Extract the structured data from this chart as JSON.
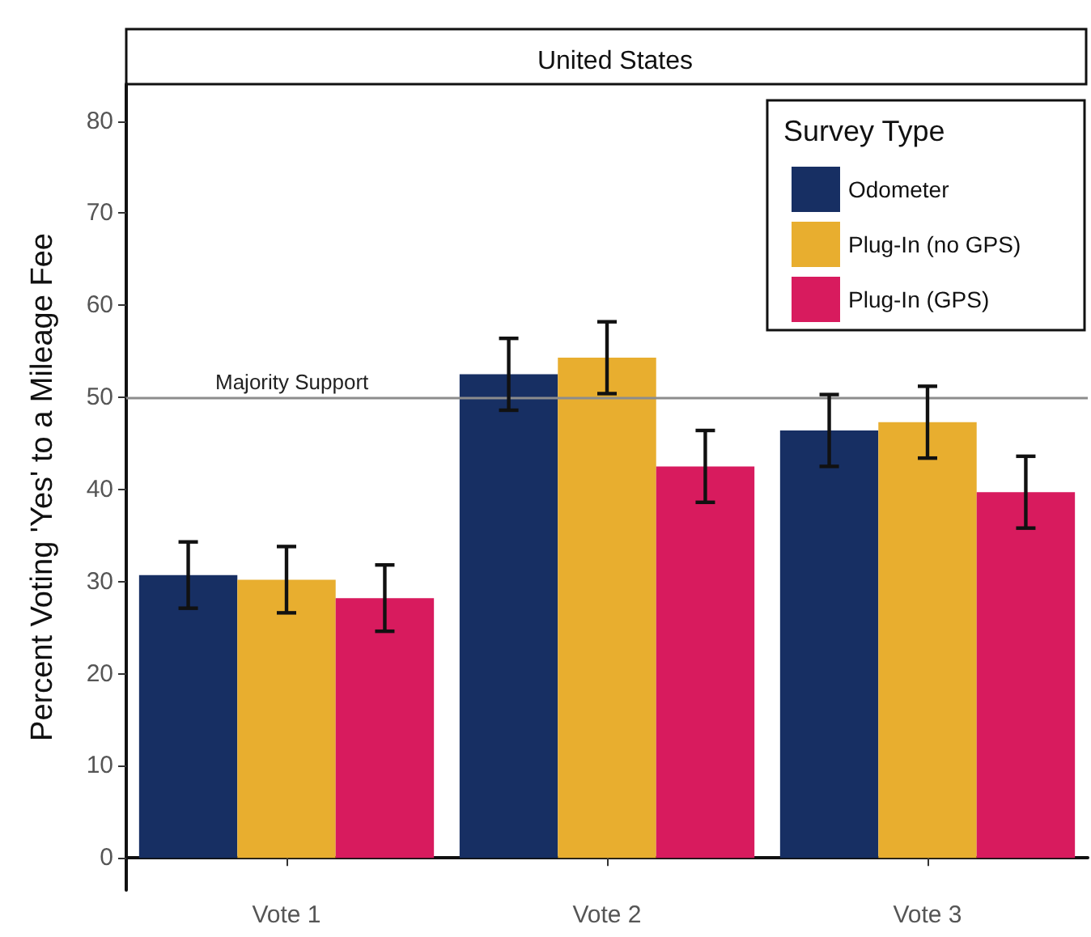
{
  "chart_data": {
    "type": "bar",
    "title": "United States",
    "ylabel": "Percent Voting 'Yes' to a Mileage Fee",
    "legend_title": "Survey Type",
    "categories": [
      "Vote 1",
      "Vote 2",
      "Vote 3"
    ],
    "series": [
      {
        "name": "Odometer",
        "color": "#172f63",
        "values": [
          30.7,
          52.5,
          46.4
        ],
        "errors": [
          3.6,
          3.9,
          3.9
        ]
      },
      {
        "name": "Plug-In (no GPS)",
        "color": "#e8ae2f",
        "values": [
          30.2,
          54.3,
          47.3
        ],
        "errors": [
          3.6,
          3.9,
          3.9
        ]
      },
      {
        "name": "Plug-In (GPS)",
        "color": "#d81b5e",
        "values": [
          28.2,
          42.5,
          39.7
        ],
        "errors": [
          3.6,
          3.9,
          3.9
        ]
      }
    ],
    "ylim": [
      -3.5,
      84
    ],
    "yticks": [
      0,
      10,
      20,
      30,
      40,
      50,
      60,
      70,
      80
    ],
    "ref_lines": [
      {
        "axis": "y",
        "value": 50,
        "label": "Majority Support",
        "color": "#8c8c8c"
      }
    ],
    "grid": false,
    "legend": "top right"
  }
}
